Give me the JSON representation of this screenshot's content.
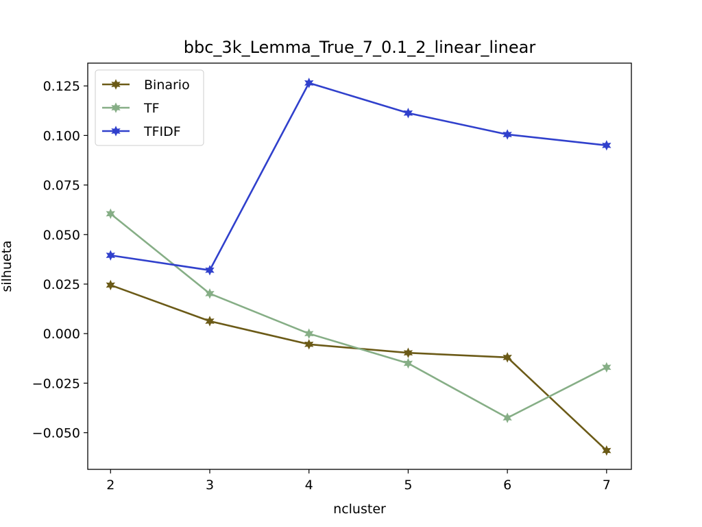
{
  "chart_data": {
    "type": "line",
    "title": "bbc_3k_Lemma_True_7_0.1_2_linear_linear",
    "xlabel": "ncluster",
    "ylabel": "silhueta",
    "xlim": [
      1.77,
      7.25
    ],
    "ylim": [
      -0.0685,
      0.1365
    ],
    "x_ticks": [
      2,
      3,
      4,
      5,
      6,
      7
    ],
    "x_tick_labels": [
      "2",
      "3",
      "4",
      "5",
      "6",
      "7"
    ],
    "y_ticks": [
      -0.05,
      -0.025,
      0.0,
      0.025,
      0.05,
      0.075,
      0.1,
      0.125
    ],
    "y_tick_labels": [
      "−0.050",
      "−0.025",
      "0.000",
      "0.025",
      "0.050",
      "0.075",
      "0.100",
      "0.125"
    ],
    "grid": false,
    "legend_position": "top-left",
    "x": [
      2,
      3,
      4,
      5,
      6,
      7
    ],
    "series": [
      {
        "name": "Binario",
        "color": "#6b5a17",
        "marker": "star",
        "values": [
          0.0245,
          0.0063,
          -0.0054,
          -0.0097,
          -0.012,
          -0.059
        ]
      },
      {
        "name": "TF",
        "color": "#86ae86",
        "marker": "star",
        "values": [
          0.0605,
          0.0202,
          0.0,
          -0.015,
          -0.0425,
          -0.017
        ]
      },
      {
        "name": "TFIDF",
        "color": "#3040cc",
        "marker": "star",
        "values": [
          0.0395,
          0.032,
          0.1265,
          0.1113,
          0.1005,
          0.095
        ]
      }
    ]
  }
}
